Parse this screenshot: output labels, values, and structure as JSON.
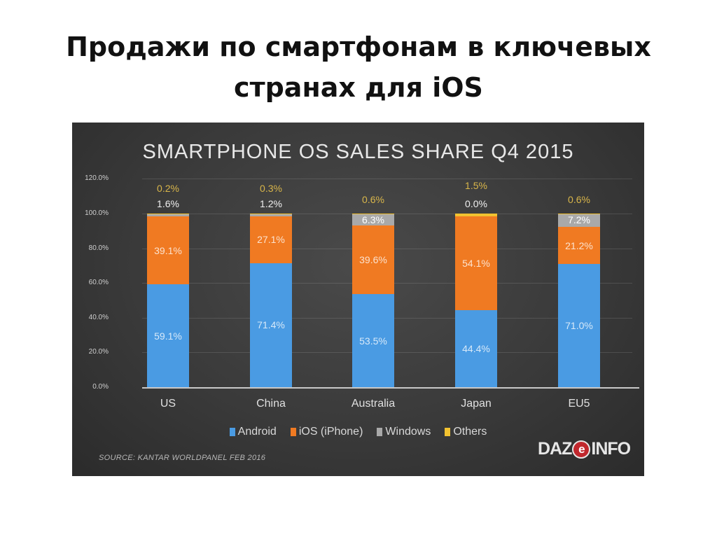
{
  "slide": {
    "title_line1": "Продажи по смартфонам в ключевых",
    "title_line2": "странах для iOS"
  },
  "colors": {
    "android": "#4a9be3",
    "ios": "#f07a22",
    "windows": "#a9a9a9",
    "others": "#f2c230",
    "others_label": "#d9b64a",
    "windows_label": "#ffffff",
    "background": "#3a3a3a"
  },
  "chart_data": {
    "type": "bar",
    "stacked": true,
    "title": "SMARTPHONE OS SALES SHARE Q4 2015",
    "xlabel": "",
    "ylabel": "",
    "ylim": [
      0,
      120
    ],
    "yticks": [
      "0.0%",
      "20.0%",
      "40.0%",
      "60.0%",
      "80.0%",
      "100.0%",
      "120.0%"
    ],
    "grid": true,
    "legend_position": "bottom",
    "categories": [
      "US",
      "China",
      "Australia",
      "Japan",
      "EU5"
    ],
    "series": [
      {
        "name": "Android",
        "values": [
          59.1,
          71.4,
          53.5,
          44.4,
          71.0
        ],
        "labels": [
          "59.1%",
          "71.4%",
          "53.5%",
          "44.4%",
          "71.0%"
        ]
      },
      {
        "name": "iOS (iPhone)",
        "values": [
          39.1,
          27.1,
          39.6,
          54.1,
          21.2
        ],
        "labels": [
          "39.1%",
          "27.1%",
          "39.6%",
          "54.1%",
          "21.2%"
        ]
      },
      {
        "name": "Windows",
        "values": [
          1.6,
          1.2,
          6.3,
          0.0,
          7.2
        ],
        "labels": [
          "1.6%",
          "1.2%",
          "6.3%",
          "0.0%",
          "7.2%"
        ]
      },
      {
        "name": "Others",
        "values": [
          0.2,
          0.3,
          0.6,
          1.5,
          0.6
        ],
        "labels": [
          "0.2%",
          "0.3%",
          "0.6%",
          "1.5%",
          "0.6%"
        ]
      }
    ],
    "source": "SOURCE: KANTAR WORLDPANEL FEB 2016",
    "brand": "DAZeINFO"
  },
  "legend": [
    {
      "label": "Android",
      "color": "#4a9be3"
    },
    {
      "label": "iOS (iPhone)",
      "color": "#f07a22"
    },
    {
      "label": "Windows",
      "color": "#a9a9a9"
    },
    {
      "label": "Others",
      "color": "#f2c230"
    }
  ],
  "logo": {
    "left": "DAZ",
    "mid": "e",
    "right": "INFO"
  }
}
